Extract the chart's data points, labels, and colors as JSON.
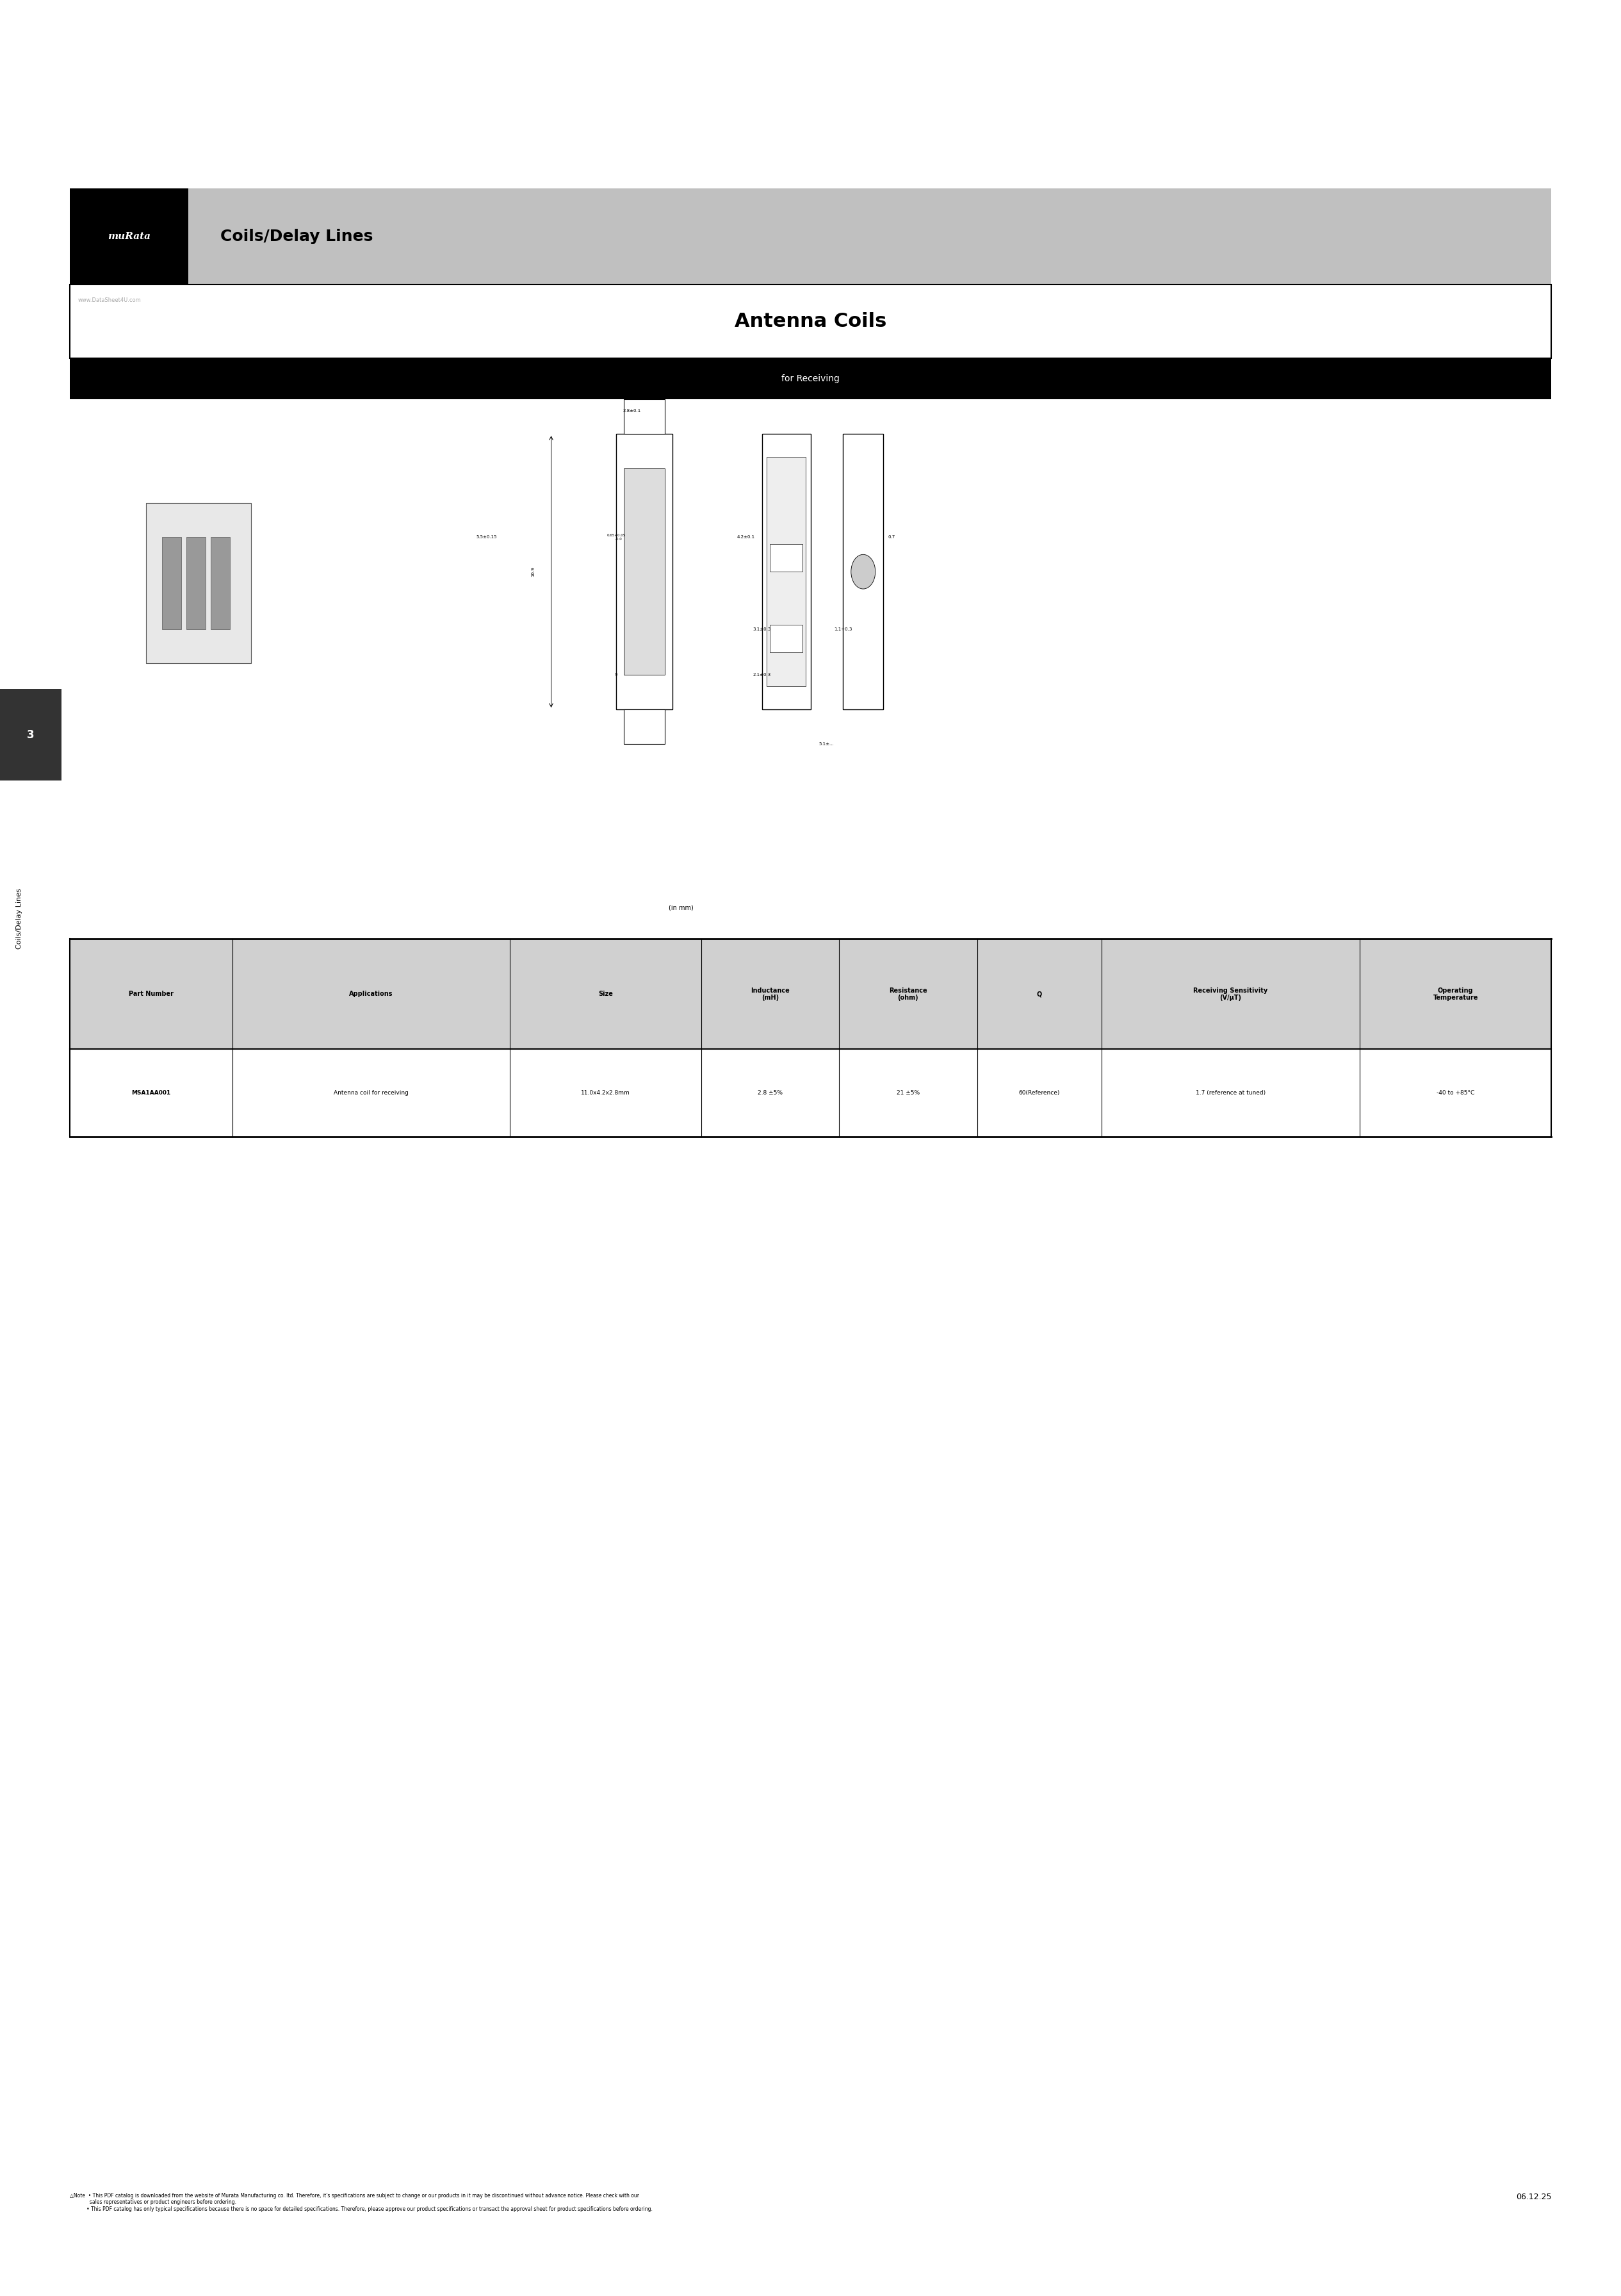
{
  "page_width": 25.31,
  "page_height": 35.83,
  "bg_color": "#ffffff",
  "header_bg_color": "#c0c0c0",
  "header_text": "Coils/Delay Lines",
  "logo_bg": "#000000",
  "logo_text": "muRata",
  "product_title": "Antenna Coils",
  "product_subtitle": "for Receiving",
  "subtitle_bg": "#000000",
  "subtitle_text_color": "#ffffff",
  "watermark_text": "www.DataSheet4U.com",
  "side_tab_bg": "#333333",
  "side_tab_text": "3",
  "side_label_text": "Coils/Delay Lines",
  "table_header_bg": "#d0d0d0",
  "table_col_headers": [
    "Part Number",
    "Applications",
    "Size",
    "Inductance\n(mH)",
    "Resistance\n(ohm)",
    "Q",
    "Receiving Sensitivity\n(V/μT)",
    "Operating\nTemperature"
  ],
  "table_data": [
    [
      "MSA1AA001",
      "Antenna coil for receiving",
      "11.0x4.2x2.8mm",
      "2.8 ±5%",
      "21 ±5%",
      "60(Reference)",
      "1.7 (reference at tuned)",
      "-40 to +85°C"
    ]
  ],
  "note_text": "△Note  • This PDF catalog is downloaded from the website of Murata Manufacturing co. ltd. Therefore, it's specifications are subject to change or our products in it may be discontinued without advance notice. Please check with our\n             sales representatives or product engineers before ordering.\n           • This PDF catalog has only typical specifications because there is no space for detailed specifications. Therefore, please approve our product specifications or transact the approval sheet for product specifications before ordering.",
  "date_text": "06.12.25",
  "in_mm_text": "(in mm)"
}
